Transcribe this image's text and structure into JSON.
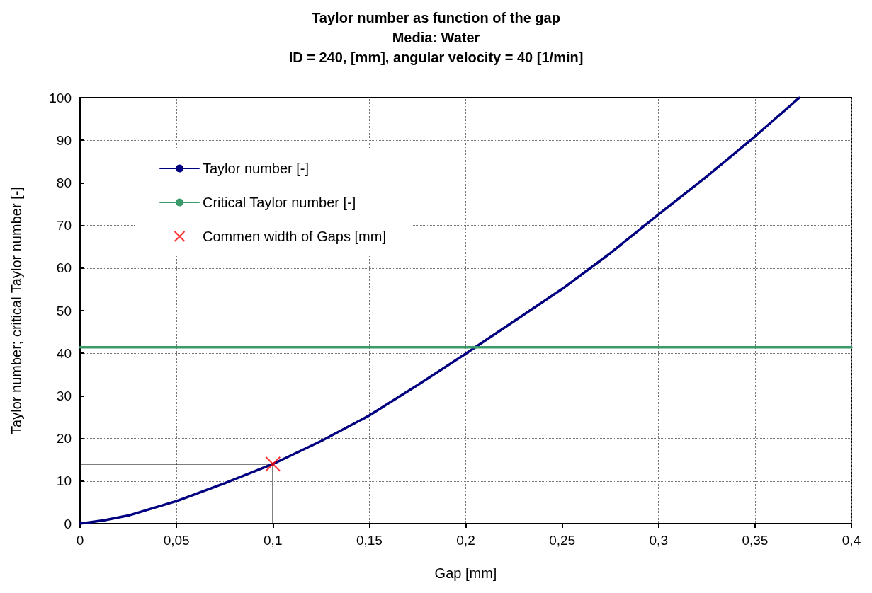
{
  "chart_data": {
    "type": "line",
    "title": "Taylor number as function of the gap\nMedia: Water\nID = 240, [mm], angular velocity = 40 [1/min]",
    "xlabel": "Gap [mm]",
    "ylabel": "Taylor number; critical Taylor number [-]",
    "xlim": [
      0,
      0.4
    ],
    "ylim": [
      0,
      100
    ],
    "xticks": [
      0,
      {
        "value": 0.05,
        "label": "0,05"
      },
      {
        "value": 0.1,
        "label": "0,1"
      },
      {
        "value": 0.15,
        "label": "0,15"
      },
      {
        "value": 0.2,
        "label": "0,2"
      },
      {
        "value": 0.25,
        "label": "0,25"
      },
      {
        "value": 0.3,
        "label": "0,3"
      },
      {
        "value": 0.35,
        "label": "0,35"
      },
      {
        "value": 0.4,
        "label": "0,4"
      }
    ],
    "yticks": [
      0,
      10,
      20,
      30,
      40,
      50,
      60,
      70,
      80,
      90,
      100
    ],
    "grid": true,
    "legend": "top left",
    "marker": "none",
    "series": [
      {
        "name": "Taylor number [-]",
        "color": "#000080",
        "x": [
          0,
          0.0125,
          0.025,
          0.05,
          0.075,
          0.1,
          0.125,
          0.15,
          0.175,
          0.2,
          0.225,
          0.25,
          0.275,
          0.3,
          0.325,
          0.35,
          0.373
        ],
        "values": [
          0,
          0.8,
          1.9,
          5.3,
          9.5,
          14,
          19.4,
          25.4,
          32.5,
          39.9,
          47.5,
          55.1,
          63.5,
          72.6,
          81.5,
          90.9,
          100
        ]
      },
      {
        "name": "Critical Taylor number [-]",
        "color": "#3a9a6a",
        "x": [
          0,
          0.4
        ],
        "values": [
          41.4,
          41.4
        ]
      },
      {
        "name": "Commen width of Gaps [mm]",
        "type": "scatter",
        "marker": "cross",
        "color": "#ff0000",
        "x": [
          0.1
        ],
        "values": [
          14
        ]
      },
      {
        "color": "#000000",
        "x": [
          0,
          0.1,
          0.1
        ],
        "values": [
          14,
          14,
          0
        ]
      }
    ]
  }
}
